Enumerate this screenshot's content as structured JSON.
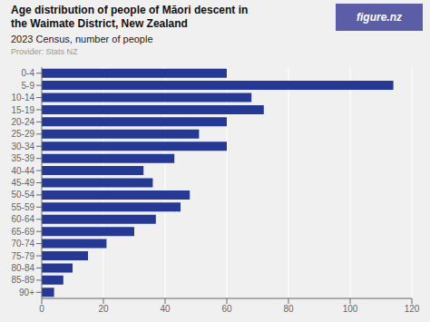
{
  "chart_data": {
    "type": "bar",
    "orientation": "horizontal",
    "title": "Age distribution of people of Māori descent in\nthe Waimate District, New Zealand",
    "subtitle": "2023 Census, number of people",
    "annotations": [
      "Provider: Stats NZ",
      "figure.nz"
    ],
    "categories": [
      "0-4",
      "5-9",
      "10-14",
      "15-19",
      "20-24",
      "25-29",
      "30-34",
      "35-39",
      "40-44",
      "45-49",
      "50-54",
      "55-59",
      "60-64",
      "65-69",
      "70-74",
      "75-79",
      "80-84",
      "85-89",
      "90+"
    ],
    "values": [
      60,
      114,
      68,
      72,
      60,
      51,
      60,
      43,
      33,
      36,
      48,
      45,
      37,
      30,
      21,
      15,
      10,
      7,
      4
    ],
    "color": "#253894",
    "xlim": [
      0,
      120
    ],
    "xticks": [
      0,
      20,
      40,
      60,
      80,
      100,
      120
    ],
    "grid": true
  }
}
